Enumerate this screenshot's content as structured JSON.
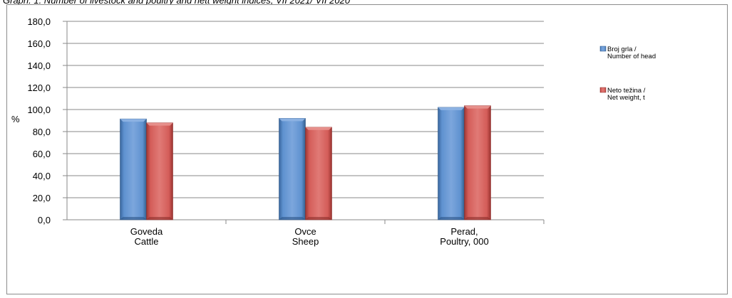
{
  "caption": "Graph. 1. Number of livestock and poultry and nett weight indices, VII 2021/ VII 2020",
  "chart_data": {
    "type": "bar",
    "ylabel": "%",
    "ylim": [
      0,
      180
    ],
    "yticks": [
      "0,0",
      "20,0",
      "40,0",
      "60,0",
      "80,0",
      "100,0",
      "120,0",
      "140,0",
      "160,0",
      "180,0"
    ],
    "grid": true,
    "legend_position": "right",
    "categories": [
      [
        "Goveda",
        "Cattle"
      ],
      [
        "Ovce",
        "Sheep"
      ],
      [
        "Perad,",
        "Poultry, 000"
      ]
    ],
    "series": [
      {
        "name": [
          "Broj grla /",
          "Number of head"
        ],
        "color": "#4f81bd",
        "values": [
          91.5,
          92.0,
          102.0
        ]
      },
      {
        "name": [
          "Neto težina /",
          "Net weight, t"
        ],
        "color": "#c0504d",
        "values": [
          88.0,
          84.0,
          103.5
        ]
      }
    ]
  }
}
